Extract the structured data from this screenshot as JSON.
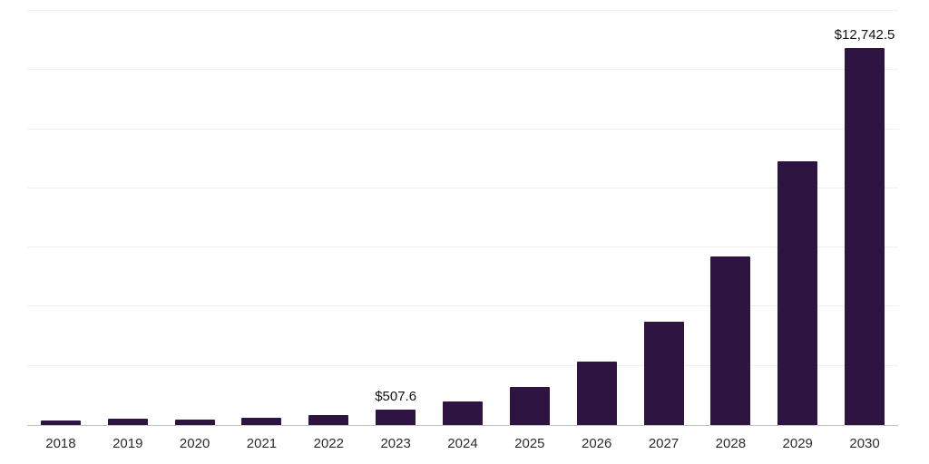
{
  "chart_data": {
    "type": "bar",
    "title": "",
    "xlabel": "",
    "ylabel": "",
    "categories": [
      "2018",
      "2019",
      "2020",
      "2021",
      "2022",
      "2023",
      "2024",
      "2025",
      "2026",
      "2027",
      "2028",
      "2029",
      "2030"
    ],
    "values": [
      160,
      200,
      195,
      245,
      330,
      507.6,
      790,
      1280,
      2150,
      3500,
      5700,
      8900,
      12742.5
    ],
    "data_labels": [
      "",
      "",
      "",
      "",
      "",
      "$507.6",
      "",
      "",
      "",
      "",
      "",
      "",
      "$12,742.5"
    ],
    "ylim": [
      0,
      14000
    ],
    "gridline_step": 2000,
    "grid": true,
    "legend": "none",
    "bar_color": "#2e1440",
    "gridline_color": "#efefef",
    "axis_line_color": "#c4c4c4",
    "label_color": "#121212",
    "tick_label_color": "#2b2b2b"
  }
}
